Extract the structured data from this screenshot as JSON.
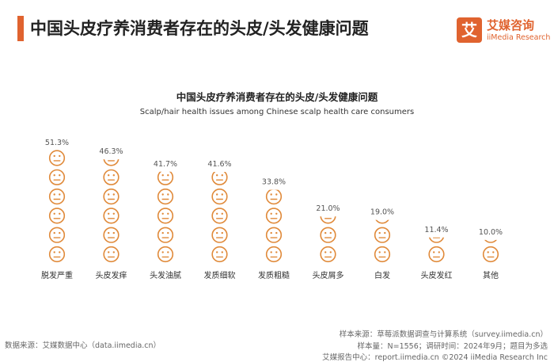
{
  "header": {
    "title": "中国头皮疗养消费者存在的头皮/头发健康问题",
    "accent_color": "#e0632f"
  },
  "logo": {
    "glyph": "艾",
    "name_cn": "艾媒咨询",
    "name_en": "iiMedia Research",
    "color": "#e0632f"
  },
  "chart_data": {
    "type": "bar",
    "title": "中国头皮疗养消费者存在的头皮/头发健康问题",
    "subtitle": "Scalp/hair health issues among Chinese scalp health care consumers",
    "categories": [
      "脱发严重",
      "头皮发痒",
      "头发油腻",
      "发质细软",
      "发质粗糙",
      "头皮屑多",
      "白发",
      "头皮发红",
      "其他"
    ],
    "values": [
      51.3,
      46.3,
      41.7,
      41.6,
      33.8,
      21.0,
      19.0,
      11.4,
      10.0
    ],
    "labels": [
      "51.3%",
      "46.3%",
      "41.7%",
      "41.6%",
      "33.8%",
      "21.0%",
      "19.0%",
      "11.4%",
      "10.0%"
    ],
    "unit": "%",
    "icon": "neutral-face-icon",
    "units_per_icon": 8.55,
    "color": "#e08a3a",
    "xlabel": "",
    "ylabel": "",
    "ylim": [
      0,
      55
    ]
  },
  "footer": {
    "source": "数据来源：艾媒数据中心（data.iimedia.cn）",
    "sample_source": "样本来源：草莓派数据调查与计算系统（survey.iimedia.cn）",
    "sample_size": "样本量：N=1556；调研时间：2024年9月；题目为多选",
    "report_center": "艾媒报告中心：report.iimedia.cn    ©2024  iiMedia Research  Inc"
  }
}
